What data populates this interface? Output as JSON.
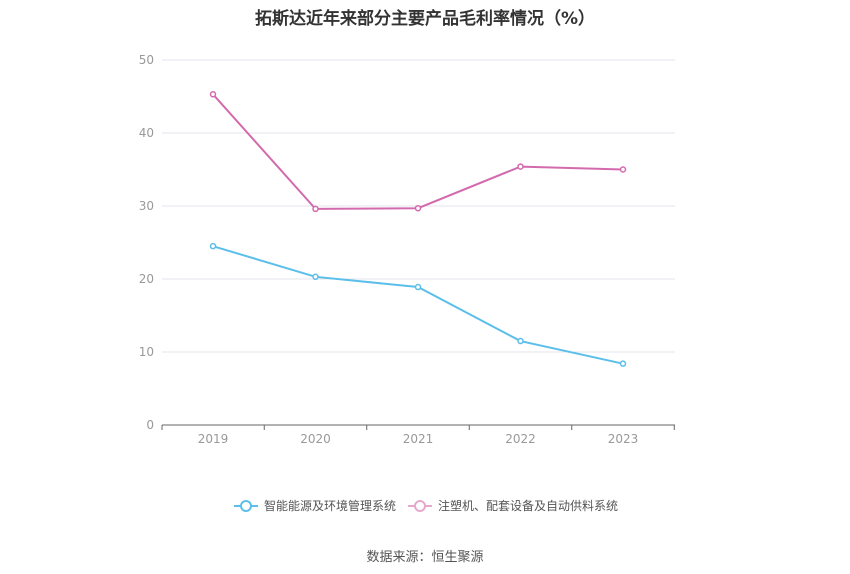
{
  "title": "拓斯达近年来部分主要产品毛利率情况（%）",
  "source": "数据来源：恒生聚源",
  "chart_data": {
    "type": "line",
    "title": "拓斯达近年来部分主要产品毛利率情况（%）",
    "x": [
      "2019",
      "2020",
      "2021",
      "2022",
      "2023"
    ],
    "ylim": [
      0,
      50
    ],
    "yticks": [
      0,
      10,
      20,
      30,
      40,
      50
    ],
    "grid": true,
    "legend": "bottom",
    "series": [
      {
        "name": "智能能源及环境管理系统",
        "values": [
          24.5,
          20.3,
          18.9,
          11.5,
          8.4
        ],
        "color": "#5bbfea"
      },
      {
        "name": "注塑机、配套设备及自动供料系统",
        "values": [
          45.3,
          29.6,
          29.7,
          35.4,
          35.0
        ],
        "color": "#d36aae"
      }
    ]
  }
}
